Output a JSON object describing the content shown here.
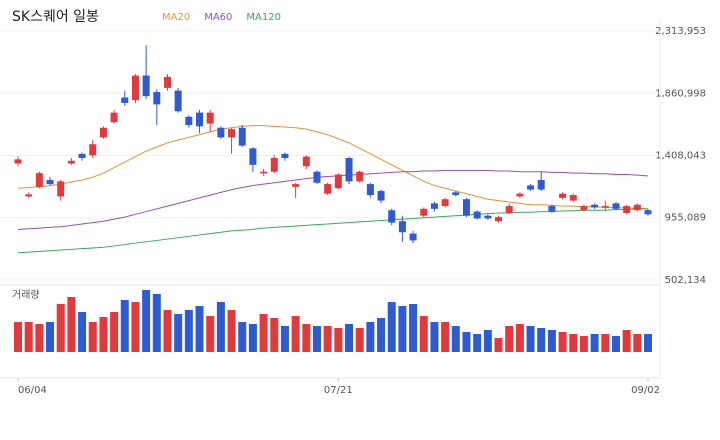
{
  "chart_data": {
    "type": "candlestick",
    "title": "SK스퀘어 일봉",
    "volume_label": "거래량",
    "up_color": "#e03a3e",
    "down_color": "#2f5bd1",
    "categories": [
      "06/04",
      null,
      null,
      null,
      null,
      null,
      null,
      null,
      null,
      null,
      null,
      null,
      null,
      null,
      null,
      null,
      null,
      null,
      null,
      null,
      null,
      null,
      null,
      null,
      null,
      null,
      null,
      null,
      null,
      null,
      "07/21",
      null,
      null,
      null,
      null,
      null,
      null,
      null,
      null,
      null,
      null,
      null,
      null,
      null,
      null,
      null,
      null,
      null,
      null,
      null,
      null,
      null,
      null,
      null,
      null,
      null,
      null,
      null,
      null,
      "09/02"
    ],
    "open": [
      1350000,
      1110000,
      1180000,
      1230000,
      1110000,
      1350000,
      1420000,
      1410000,
      1540000,
      1650000,
      1830000,
      1810000,
      1990000,
      1870000,
      1900000,
      1880000,
      1690000,
      1720000,
      1640000,
      1610000,
      1540000,
      1610000,
      1460000,
      1280000,
      1290000,
      1420000,
      1180000,
      1330000,
      1290000,
      1130000,
      1170000,
      1390000,
      1220000,
      1200000,
      1150000,
      1010000,
      930000,
      840000,
      970000,
      1060000,
      1040000,
      1140000,
      1090000,
      1000000,
      970000,
      930000,
      990000,
      1110000,
      1190000,
      1230000,
      1040000,
      1100000,
      1080000,
      1010000,
      1050000,
      1030000,
      1060000,
      990000,
      1010000,
      1010000
    ],
    "high": [
      1400000,
      1140000,
      1290000,
      1250000,
      1230000,
      1390000,
      1430000,
      1520000,
      1620000,
      1740000,
      1880000,
      2000000,
      2210000,
      1890000,
      2000000,
      1900000,
      1700000,
      1740000,
      1740000,
      1620000,
      1610000,
      1630000,
      1470000,
      1310000,
      1410000,
      1430000,
      1210000,
      1410000,
      1300000,
      1210000,
      1280000,
      1400000,
      1300000,
      1210000,
      1160000,
      1020000,
      970000,
      860000,
      1030000,
      1070000,
      1100000,
      1150000,
      1100000,
      1010000,
      980000,
      970000,
      1060000,
      1140000,
      1200000,
      1290000,
      1050000,
      1140000,
      1130000,
      1050000,
      1060000,
      1080000,
      1070000,
      1050000,
      1060000,
      1020000
    ],
    "low": [
      1330000,
      1100000,
      1170000,
      1190000,
      1080000,
      1340000,
      1370000,
      1390000,
      1530000,
      1640000,
      1770000,
      1790000,
      1820000,
      1630000,
      1880000,
      1720000,
      1610000,
      1570000,
      1580000,
      1530000,
      1420000,
      1470000,
      1290000,
      1260000,
      1280000,
      1370000,
      1100000,
      1310000,
      1200000,
      1120000,
      1160000,
      1200000,
      1210000,
      1100000,
      1060000,
      900000,
      780000,
      770000,
      960000,
      1000000,
      1030000,
      1110000,
      960000,
      940000,
      940000,
      920000,
      980000,
      1100000,
      1150000,
      1150000,
      990000,
      1090000,
      1070000,
      1000000,
      1020000,
      1010000,
      1010000,
      980000,
      1000000,
      970000
    ],
    "close": [
      1380000,
      1125000,
      1280000,
      1200000,
      1220000,
      1370000,
      1390000,
      1490000,
      1610000,
      1720000,
      1790000,
      1990000,
      1840000,
      1780000,
      1980000,
      1730000,
      1630000,
      1620000,
      1720000,
      1540000,
      1600000,
      1480000,
      1340000,
      1290000,
      1390000,
      1390000,
      1200000,
      1400000,
      1210000,
      1200000,
      1270000,
      1220000,
      1290000,
      1120000,
      1080000,
      920000,
      850000,
      790000,
      1020000,
      1020000,
      1090000,
      1120000,
      970000,
      950000,
      950000,
      960000,
      1040000,
      1130000,
      1160000,
      1160000,
      1000000,
      1130000,
      1120000,
      1040000,
      1030000,
      1040000,
      1020000,
      1040000,
      1050000,
      980000
    ],
    "volume": [
      300000,
      300000,
      280000,
      300000,
      480000,
      550000,
      400000,
      300000,
      350000,
      400000,
      520000,
      500000,
      620000,
      580000,
      420000,
      380000,
      420000,
      460000,
      360000,
      500000,
      420000,
      300000,
      280000,
      380000,
      340000,
      260000,
      360000,
      280000,
      260000,
      260000,
      240000,
      280000,
      240000,
      300000,
      340000,
      500000,
      460000,
      480000,
      360000,
      300000,
      300000,
      260000,
      200000,
      180000,
      220000,
      140000,
      260000,
      280000,
      260000,
      240000,
      220000,
      200000,
      180000,
      160000,
      180000,
      180000,
      160000,
      220000,
      180000,
      180000
    ],
    "series": [
      {
        "name": "MA20",
        "color": "#e8913a",
        "values": [
          1170000,
          1175000,
          1180000,
          1190000,
          1200000,
          1215000,
          1230000,
          1250000,
          1280000,
          1320000,
          1360000,
          1400000,
          1440000,
          1470000,
          1500000,
          1520000,
          1540000,
          1560000,
          1580000,
          1600000,
          1610000,
          1620000,
          1625000,
          1625000,
          1620000,
          1615000,
          1610000,
          1600000,
          1580000,
          1560000,
          1530000,
          1500000,
          1460000,
          1420000,
          1380000,
          1340000,
          1300000,
          1260000,
          1220000,
          1190000,
          1170000,
          1150000,
          1130000,
          1110000,
          1090000,
          1080000,
          1070000,
          1060000,
          1050000,
          1050000,
          1045000,
          1040000,
          1040000,
          1035000,
          1035000,
          1030000,
          1030000,
          1025000,
          1025000,
          1020000
        ]
      },
      {
        "name": "MA60",
        "color": "#9b4fb0",
        "values": [
          870000,
          875000,
          880000,
          885000,
          890000,
          900000,
          910000,
          920000,
          930000,
          945000,
          960000,
          980000,
          1000000,
          1020000,
          1040000,
          1060000,
          1080000,
          1100000,
          1120000,
          1140000,
          1160000,
          1175000,
          1190000,
          1200000,
          1210000,
          1220000,
          1230000,
          1240000,
          1250000,
          1255000,
          1260000,
          1265000,
          1270000,
          1275000,
          1280000,
          1285000,
          1290000,
          1290000,
          1295000,
          1295000,
          1300000,
          1300000,
          1300000,
          1300000,
          1300000,
          1295000,
          1295000,
          1290000,
          1290000,
          1290000,
          1285000,
          1285000,
          1280000,
          1280000,
          1275000,
          1275000,
          1270000,
          1270000,
          1265000,
          1260000
        ]
      },
      {
        "name": "MA120",
        "color": "#3aa85a",
        "values": [
          700000,
          705000,
          710000,
          715000,
          720000,
          725000,
          730000,
          735000,
          740000,
          750000,
          760000,
          770000,
          780000,
          790000,
          800000,
          810000,
          820000,
          830000,
          840000,
          850000,
          860000,
          865000,
          870000,
          880000,
          885000,
          890000,
          895000,
          900000,
          905000,
          910000,
          915000,
          920000,
          925000,
          930000,
          935000,
          940000,
          945000,
          950000,
          955000,
          960000,
          965000,
          970000,
          975000,
          980000,
          985000,
          990000,
          990000,
          995000,
          995000,
          1000000,
          1000000,
          1005000,
          1005000,
          1010000,
          1010000,
          1010000,
          1015000,
          1015000,
          1020000,
          1020000
        ]
      }
    ],
    "ylim": [
      502134,
      2313953
    ],
    "yticks": [
      {
        "value": 2313953,
        "label": "2,313,953"
      },
      {
        "value": 1860998,
        "label": "1,860,998"
      },
      {
        "value": 1408043,
        "label": "1,408,043"
      },
      {
        "value": 955089,
        "label": "955,089"
      },
      {
        "value": 502134,
        "label": "502,134"
      }
    ],
    "grid": true
  }
}
